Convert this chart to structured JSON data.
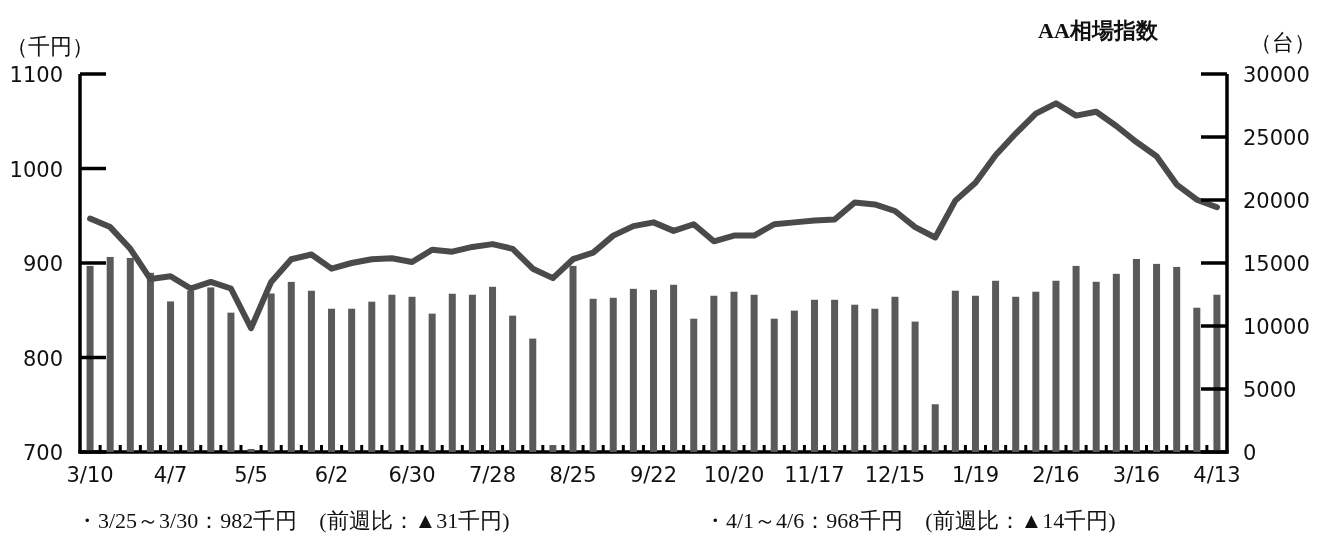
{
  "chart_data": {
    "type": "bar",
    "title": "AA相場指数",
    "ylabel": "（千円）",
    "y2label": "（台）",
    "categories": [
      "3/10",
      null,
      null,
      null,
      "4/7",
      null,
      null,
      null,
      "5/5",
      null,
      null,
      null,
      "6/2",
      null,
      null,
      null,
      "6/30",
      null,
      null,
      null,
      "7/28",
      null,
      null,
      null,
      "8/25",
      null,
      null,
      null,
      "9/22",
      null,
      null,
      null,
      "10/20",
      null,
      null,
      null,
      "11/17",
      null,
      null,
      null,
      "12/15",
      null,
      null,
      null,
      "1/19",
      null,
      null,
      null,
      "2/16",
      null,
      null,
      null,
      "3/16",
      null,
      null,
      null,
      "4/13"
    ],
    "series": [
      {
        "axis": "y2",
        "color": "#5a5a5a",
        "values": [
          14770,
          15480,
          15400,
          14220,
          11950,
          12800,
          13060,
          11060,
          240,
          12580,
          13500,
          12800,
          11370,
          11370,
          11930,
          12480,
          12320,
          10980,
          12560,
          12480,
          13110,
          10820,
          9000,
          550,
          14770,
          12160,
          12240,
          12950,
          12870,
          13270,
          10580,
          12400,
          12720,
          12480,
          10580,
          11220,
          12080,
          12080,
          11690,
          11370,
          12320,
          10350,
          3790,
          12800,
          12400,
          13590,
          12320,
          12720,
          13590,
          14770,
          13510,
          14140,
          15320,
          14930,
          14690,
          11450,
          12480
        ]
      },
      {
        "type": "line",
        "color": "#4a4a4a",
        "values": [
          947,
          938,
          915,
          883,
          886,
          873,
          880,
          873,
          831,
          880,
          904,
          909,
          894,
          900,
          904,
          905,
          901,
          914,
          912,
          917,
          920,
          915,
          894,
          884,
          904,
          911,
          929,
          939,
          943,
          934,
          941,
          923,
          929,
          929,
          941,
          943,
          945,
          946,
          964,
          962,
          955,
          938,
          927,
          966,
          985,
          1014,
          1037,
          1058,
          1069,
          1056,
          1060,
          1045,
          1028,
          1013,
          983,
          967,
          959
        ]
      }
    ],
    "ylim": [
      700,
      1100
    ],
    "yticks": [
      700,
      800,
      900,
      1000,
      1100
    ],
    "y2lim": [
      0,
      30000
    ],
    "y2ticks": [
      0,
      5000,
      10000,
      15000,
      20000,
      25000,
      30000
    ],
    "grid": false,
    "annotations": [
      "・3/25～3/30：982千円　(前週比：▲31千円)",
      "・4/1～4/6：968千円　(前週比：▲14千円)"
    ]
  }
}
